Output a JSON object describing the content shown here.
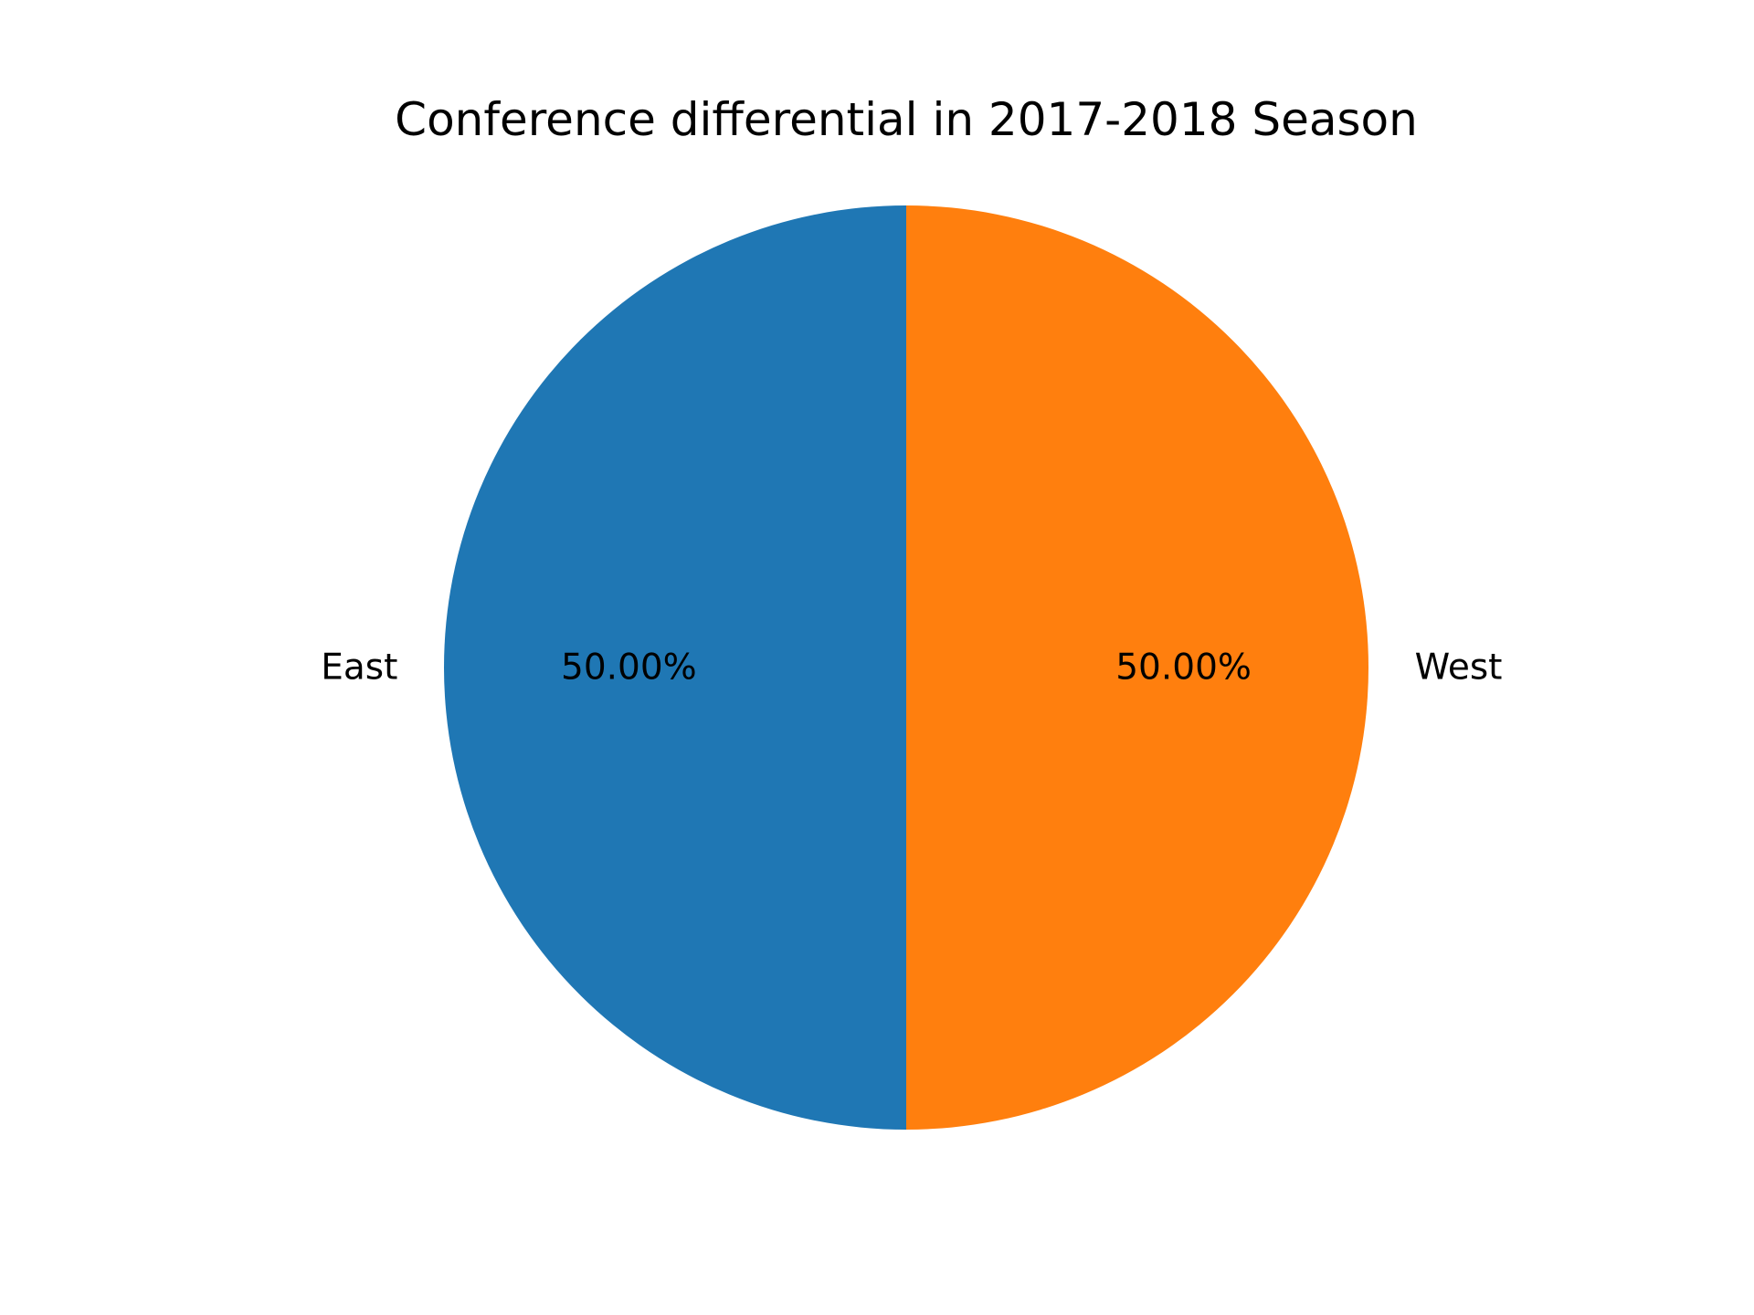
{
  "chart_data": {
    "type": "pie",
    "title": "Conference differential in 2017-2018 Season",
    "slices": [
      {
        "label": "East",
        "value": 50.0,
        "pct_label": "50.00%",
        "color": "#1f77b4"
      },
      {
        "label": "West",
        "value": 50.0,
        "pct_label": "50.00%",
        "color": "#ff7f0e"
      }
    ],
    "start_angle": "top",
    "direction": "counterclockwise",
    "legend": "none"
  }
}
